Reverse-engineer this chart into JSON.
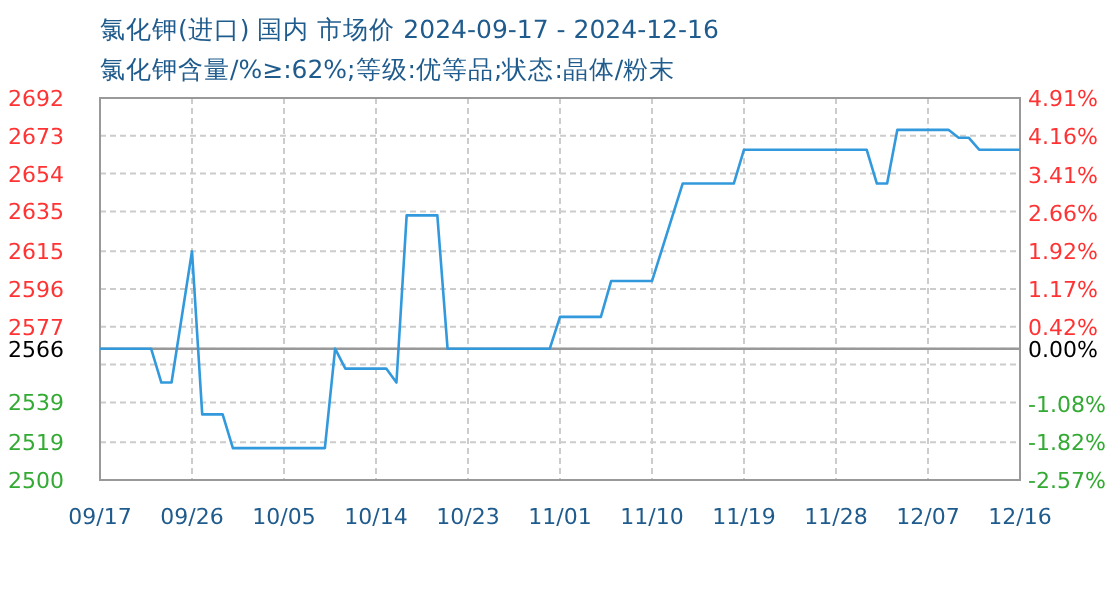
{
  "chart_data": {
    "type": "line",
    "title": "氯化钾(进口) 国内 市场价 2024-09-17 - 2024-12-16",
    "subtitle": "氯化钾含量/%≥:62%;等级:优等品;状态:晶体/粉末",
    "x": [
      "2024-09-17",
      "2024-09-22",
      "2024-09-23",
      "2024-09-24",
      "2024-09-26",
      "2024-09-27",
      "2024-09-29",
      "2024-09-30",
      "2024-10-09",
      "2024-10-10",
      "2024-10-11",
      "2024-10-15",
      "2024-10-16",
      "2024-10-17",
      "2024-10-20",
      "2024-10-21",
      "2024-10-31",
      "2024-11-01",
      "2024-11-05",
      "2024-11-06",
      "2024-11-10",
      "2024-11-13",
      "2024-11-18",
      "2024-11-19",
      "2024-12-01",
      "2024-12-02",
      "2024-12-03",
      "2024-12-04",
      "2024-12-09",
      "2024-12-10",
      "2024-12-11",
      "2024-12-12",
      "2024-12-16"
    ],
    "series": [
      {
        "color": "#3399dd",
        "values": [
          2566,
          2566,
          2549,
          2549,
          2615,
          2533,
          2533,
          2516,
          2516,
          2566,
          2556,
          2556,
          2549,
          2633,
          2633,
          2566,
          2566,
          2582,
          2582,
          2600,
          2600,
          2649,
          2649,
          2666,
          2666,
          2649,
          2649,
          2676,
          2676,
          2672,
          2672,
          2666,
          2666
        ]
      }
    ],
    "xlim": [
      "2024-09-17",
      "2024-12-16"
    ],
    "xticks": [
      {
        "value": "2024-09-17",
        "label": "09/17"
      },
      {
        "value": "2024-09-26",
        "label": "09/26"
      },
      {
        "value": "2024-10-05",
        "label": "10/05"
      },
      {
        "value": "2024-10-14",
        "label": "10/14"
      },
      {
        "value": "2024-10-23",
        "label": "10/23"
      },
      {
        "value": "2024-11-01",
        "label": "11/01"
      },
      {
        "value": "2024-11-10",
        "label": "11/10"
      },
      {
        "value": "2024-11-19",
        "label": "11/19"
      },
      {
        "value": "2024-11-28",
        "label": "11/28"
      },
      {
        "value": "2024-12-07",
        "label": "12/07"
      },
      {
        "value": "2024-12-16",
        "label": "12/16"
      }
    ],
    "ylim": [
      2500,
      2692
    ],
    "yticks": [
      2500,
      2519,
      2539,
      {
        "value": 2558,
        "label": null
      },
      2566,
      2577,
      2596,
      2615,
      2635,
      2654,
      2673,
      2692
    ],
    "y2lim": [
      -2.57,
      4.91
    ],
    "y2ticks": [
      {
        "value": -2.57,
        "label": "-2.57%"
      },
      {
        "value": -1.82,
        "label": "-1.82%"
      },
      {
        "value": -1.08,
        "label": "-1.08%"
      },
      {
        "value": 0,
        "label": "0.00%"
      },
      {
        "value": 0.42,
        "label": "0.42%"
      },
      {
        "value": 1.17,
        "label": "1.17%"
      },
      {
        "value": 1.92,
        "label": "1.92%"
      },
      {
        "value": 2.66,
        "label": "2.66%"
      },
      {
        "value": 3.41,
        "label": "3.41%"
      },
      {
        "value": 4.16,
        "label": "4.16%"
      },
      {
        "value": 4.91,
        "label": "4.91%"
      }
    ],
    "ref_lines": [
      {
        "axis": "y",
        "value": 2566,
        "color": "#999999"
      }
    ],
    "grid": true,
    "marker": "none",
    "line_style": "solid"
  }
}
